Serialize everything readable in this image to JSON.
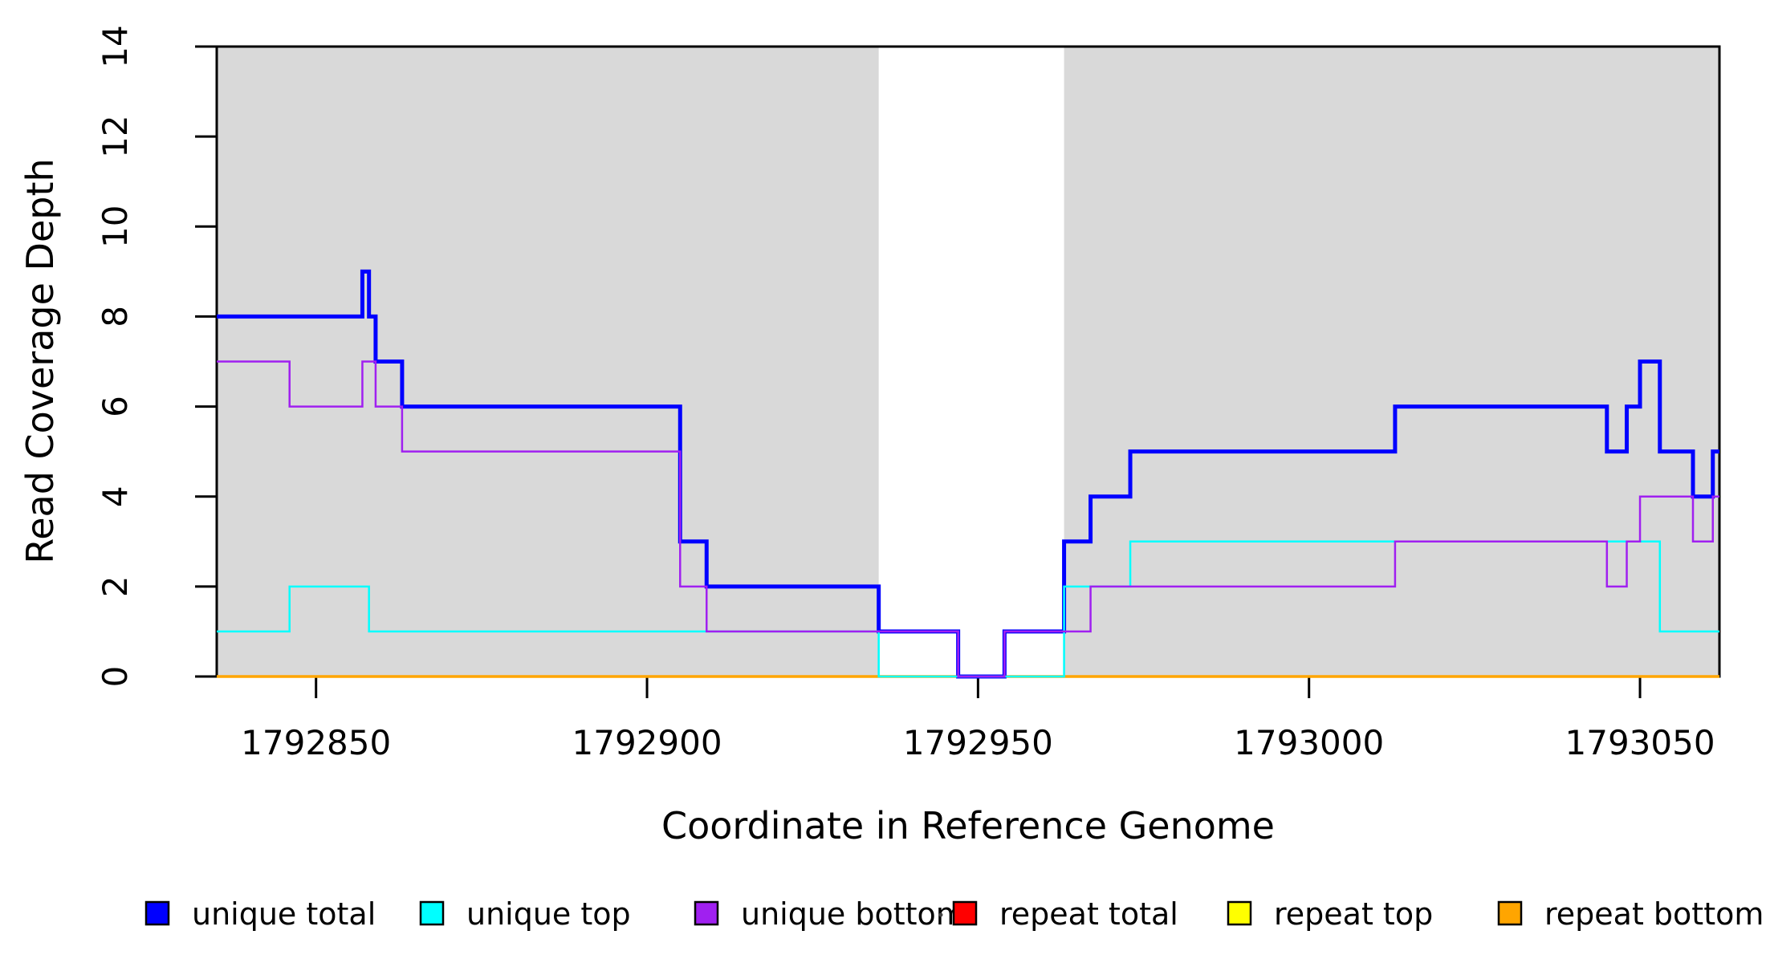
{
  "chart_data": {
    "type": "line",
    "subtype": "step-coverage-plot",
    "title": "",
    "xlabel": "Coordinate in Reference Genome",
    "ylabel": "Read Coverage Depth",
    "xlim": [
      1792835,
      1793062
    ],
    "ylim": [
      0,
      14
    ],
    "x_ticks": [
      1792850,
      1792900,
      1792950,
      1793000,
      1793050
    ],
    "y_ticks": [
      0,
      2,
      4,
      6,
      8,
      10,
      12,
      14
    ],
    "grid": false,
    "legend_position": "bottom",
    "plot_background": "#ffffff",
    "box_color": "#000000",
    "shaded_region_color": "#d9d9d9",
    "shaded_regions": [
      {
        "x0": 1792835,
        "x1": 1792935,
        "label": "aligned-region-left"
      },
      {
        "x0": 1792963,
        "x1": 1793062,
        "label": "aligned-region-right"
      }
    ],
    "draw_order": [
      "repeat total",
      "repeat top",
      "repeat bottom",
      "unique total",
      "unique top",
      "unique bottom"
    ],
    "series": [
      {
        "name": "unique total",
        "color": "#0000ff",
        "line_width": 5,
        "end": 1793062,
        "steps": [
          [
            1792835,
            8
          ],
          [
            1792857,
            9
          ],
          [
            1792858,
            8
          ],
          [
            1792859,
            7
          ],
          [
            1792863,
            6
          ],
          [
            1792905,
            3
          ],
          [
            1792909,
            2
          ],
          [
            1792935,
            1
          ],
          [
            1792947,
            0
          ],
          [
            1792954,
            1
          ],
          [
            1792963,
            3
          ],
          [
            1792967,
            4
          ],
          [
            1792973,
            5
          ],
          [
            1793013,
            6
          ],
          [
            1793045,
            5
          ],
          [
            1793048,
            6
          ],
          [
            1793050,
            7
          ],
          [
            1793053,
            5
          ],
          [
            1793058,
            4
          ],
          [
            1793061,
            5
          ]
        ]
      },
      {
        "name": "unique top",
        "color": "#00ffff",
        "line_width": 2.5,
        "end": 1793062,
        "steps": [
          [
            1792835,
            1
          ],
          [
            1792846,
            2
          ],
          [
            1792858,
            1
          ],
          [
            1792935,
            0
          ],
          [
            1792963,
            2
          ],
          [
            1792973,
            3
          ],
          [
            1793053,
            1
          ]
        ]
      },
      {
        "name": "unique bottom",
        "color": "#a020f0",
        "line_width": 2.5,
        "end": 1793062,
        "steps": [
          [
            1792835,
            7
          ],
          [
            1792846,
            6
          ],
          [
            1792857,
            7
          ],
          [
            1792859,
            6
          ],
          [
            1792863,
            5
          ],
          [
            1792905,
            2
          ],
          [
            1792909,
            1
          ],
          [
            1792947,
            0
          ],
          [
            1792954,
            1
          ],
          [
            1792967,
            2
          ],
          [
            1793013,
            3
          ],
          [
            1793045,
            2
          ],
          [
            1793048,
            3
          ],
          [
            1793050,
            4
          ],
          [
            1793058,
            3
          ],
          [
            1793061,
            4
          ]
        ]
      },
      {
        "name": "repeat total",
        "color": "#ff0000",
        "line_width": 2.5,
        "end": 1793062,
        "steps": [
          [
            1792835,
            0
          ]
        ]
      },
      {
        "name": "repeat top",
        "color": "#ffff00",
        "line_width": 2.5,
        "end": 1793062,
        "steps": [
          [
            1792835,
            0
          ]
        ]
      },
      {
        "name": "repeat bottom",
        "color": "#ffa500",
        "line_width": 3.5,
        "end": 1793062,
        "steps": [
          [
            1792835,
            0
          ]
        ]
      }
    ]
  }
}
